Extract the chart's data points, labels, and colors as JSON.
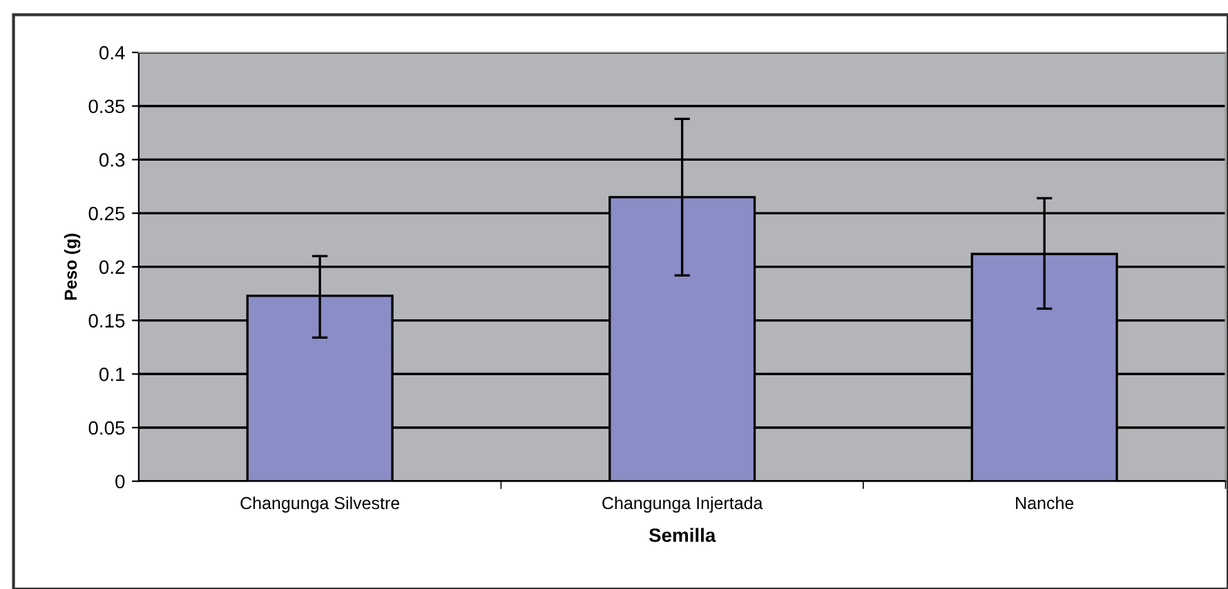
{
  "chart_data": {
    "type": "bar",
    "xlabel": "Semilla",
    "ylabel": "Peso (g)",
    "categories": [
      "Changunga Silvestre",
      "Changunga Injertada",
      "Nanche"
    ],
    "values": [
      0.173,
      0.265,
      0.212
    ],
    "errors": [
      [
        0.134,
        0.21
      ],
      [
        0.192,
        0.338
      ],
      [
        0.161,
        0.264
      ]
    ],
    "color": "#8b8dc6",
    "ylim": [
      0,
      0.4
    ],
    "yticks": [
      0,
      0.05,
      0.1,
      0.15,
      0.2,
      0.25,
      0.3,
      0.35,
      0.4
    ],
    "grid": "y",
    "legend": false
  }
}
